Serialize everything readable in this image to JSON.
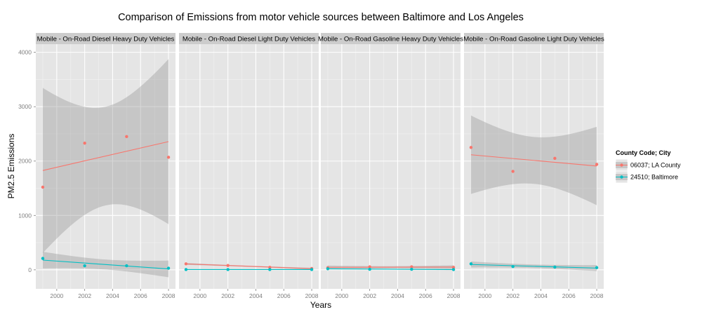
{
  "chart_data": {
    "type": "scatter",
    "title": "Comparison of Emissions from motor vehicle sources between Baltimore and Los Angeles",
    "xlabel": "Years",
    "ylabel": "PM2.5 Emissions",
    "x": [
      1999,
      2002,
      2005,
      2008
    ],
    "x_ticks": [
      2000,
      2002,
      2004,
      2006,
      2008
    ],
    "y_ticks": [
      0,
      1000,
      2000,
      3000,
      4000
    ],
    "xlim": [
      1998.5,
      2008.5
    ],
    "ylim": [
      -350,
      4150
    ],
    "grid": true,
    "trend": "linear fit with confidence band",
    "legend": {
      "title": "County Code; City",
      "placement": "right",
      "entries": [
        "06037; LA County",
        "24510; Baltimore"
      ]
    },
    "colors": {
      "06037; LA County": "#F8766D",
      "24510; Baltimore": "#00BFC4"
    },
    "facets": [
      {
        "name": "Mobile - On-Road Diesel Heavy Duty Vehicles",
        "series": [
          {
            "name": "06037; LA County",
            "values": [
              1520,
              2330,
              2450,
              2070
            ]
          },
          {
            "name": "24510; Baltimore",
            "values": [
              210,
              75,
              75,
              30
            ]
          }
        ]
      },
      {
        "name": "Mobile - On-Road Diesel Light Duty Vehicles",
        "series": [
          {
            "name": "06037; LA County",
            "values": [
              110,
              80,
              45,
              25
            ]
          },
          {
            "name": "24510; Baltimore",
            "values": [
              5,
              5,
              5,
              5
            ]
          }
        ]
      },
      {
        "name": "Mobile - On-Road Gasoline Heavy Duty Vehicles",
        "series": [
          {
            "name": "06037; LA County",
            "values": [
              40,
              55,
              55,
              45
            ]
          },
          {
            "name": "24510; Baltimore",
            "values": [
              20,
              10,
              10,
              5
            ]
          }
        ]
      },
      {
        "name": "Mobile - On-Road Gasoline Light Duty Vehicles",
        "series": [
          {
            "name": "06037; LA County",
            "values": [
              2250,
              1810,
              2050,
              1940
            ]
          },
          {
            "name": "24510; Baltimore",
            "values": [
              110,
              60,
              50,
              40
            ]
          }
        ]
      }
    ]
  }
}
